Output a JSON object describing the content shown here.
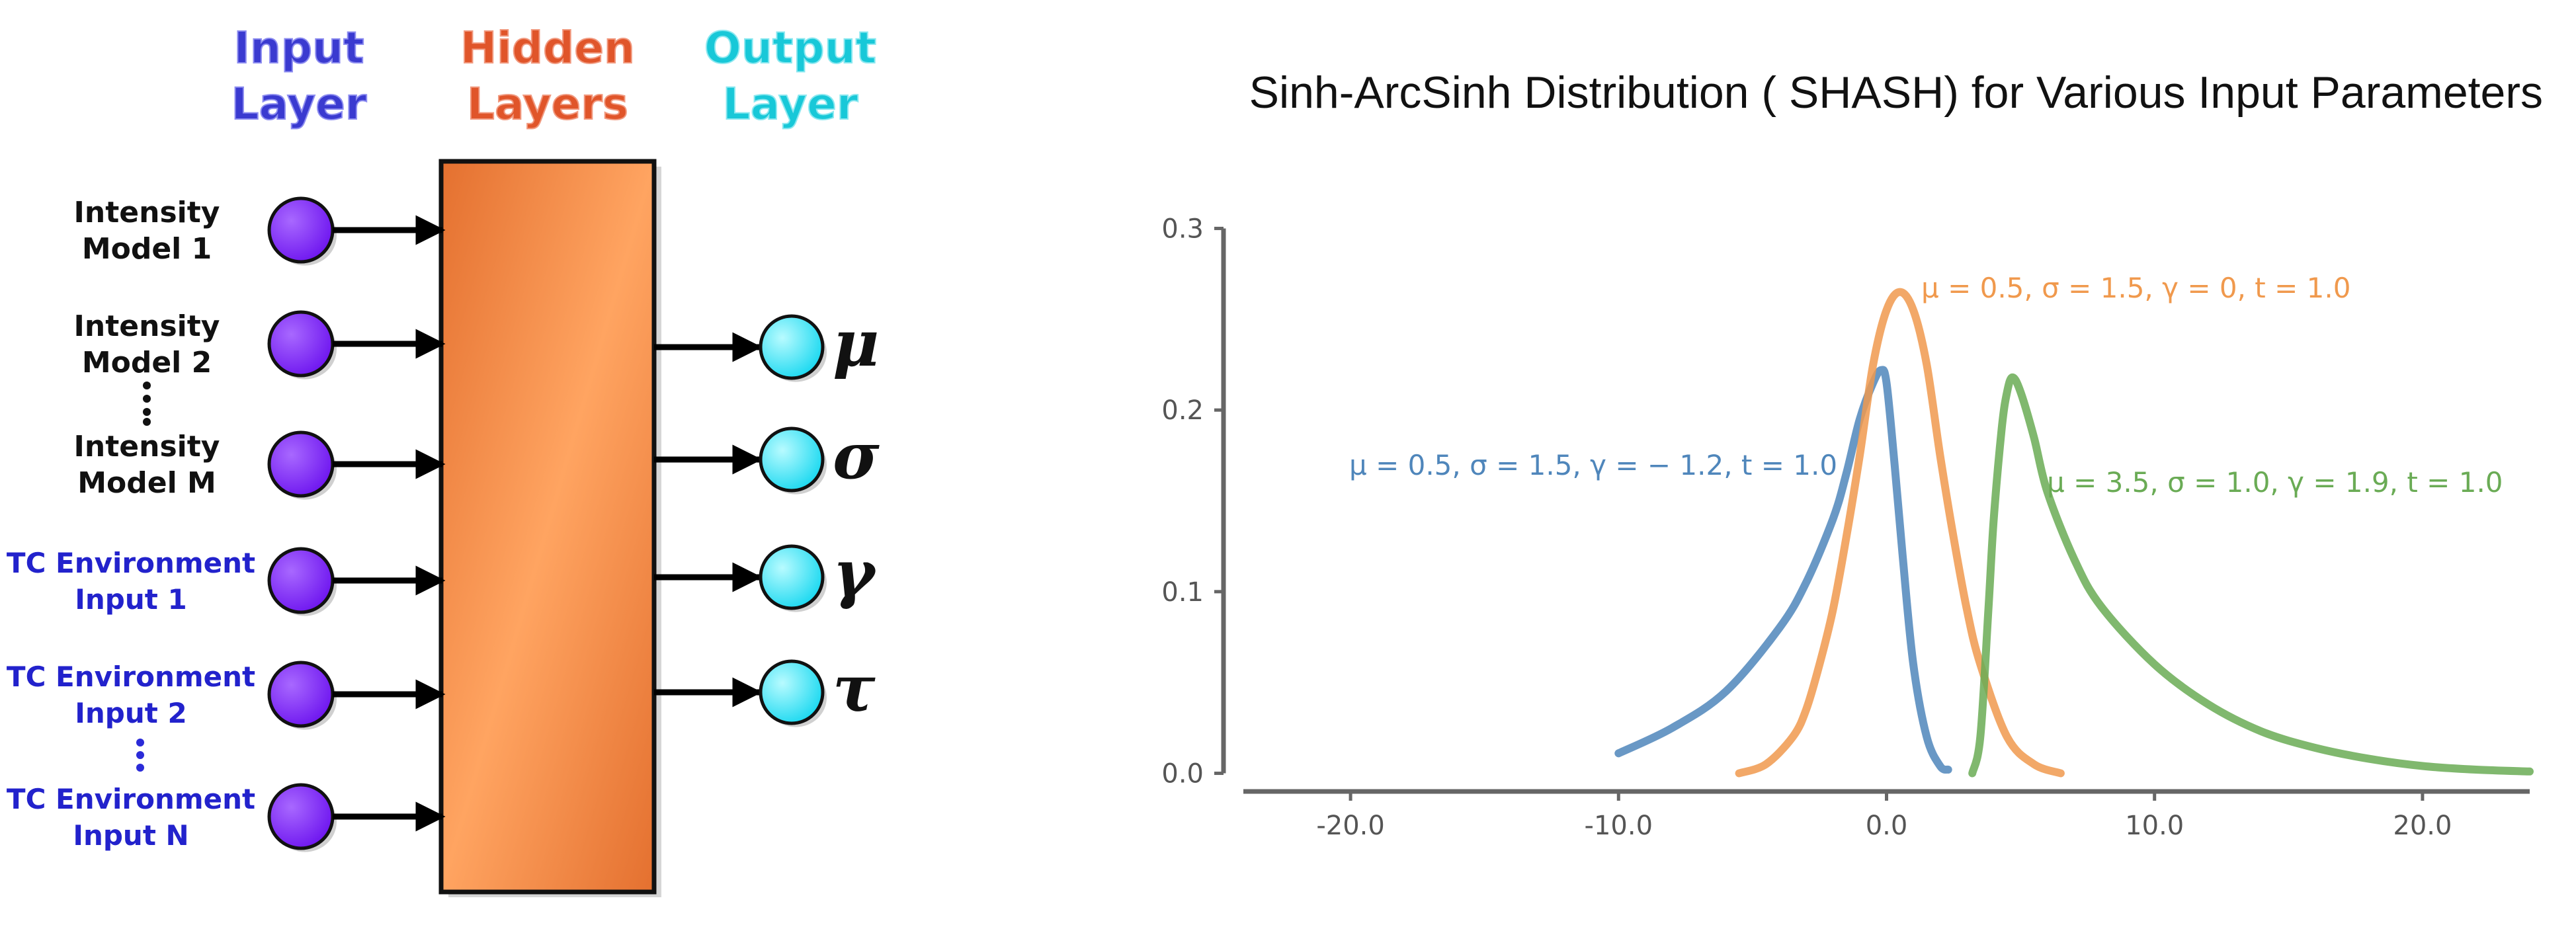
{
  "diagram": {
    "headers": {
      "input": [
        "Input",
        "Layer"
      ],
      "hidden": [
        "Hidden",
        "Layers"
      ],
      "output": [
        "Output",
        "Layer"
      ]
    },
    "inputs": [
      {
        "lines": [
          "Intensity",
          "Model 1"
        ],
        "kind": "model"
      },
      {
        "lines": [
          "Intensity",
          "Model 2"
        ],
        "kind": "model"
      },
      {
        "lines": [
          "Intensity",
          "Model M"
        ],
        "kind": "model"
      },
      {
        "lines": [
          "TC Environment",
          "Input 1"
        ],
        "kind": "env"
      },
      {
        "lines": [
          "TC Environment",
          "Input 2"
        ],
        "kind": "env"
      },
      {
        "lines": [
          "TC Environment",
          "Input N"
        ],
        "kind": "env"
      }
    ],
    "outputs": [
      "μ",
      "σ",
      "γ",
      "τ"
    ],
    "colors": {
      "input_header": "#3a3ad0",
      "hidden_header": "#e0552a",
      "output_header": "#18c8d8",
      "input_node": "#7a1fff",
      "output_node": "#33ecff",
      "hidden_box_light": "#ffa461",
      "hidden_box_dark": "#e4702f",
      "env_label": "#2222cc"
    }
  },
  "chart_data": {
    "type": "line",
    "title": "Sinh-ArcSinh Distribution ( SHASH) for Various Input Parameters",
    "xlabel": "",
    "ylabel": "",
    "xlim": [
      -24.0,
      24.0
    ],
    "ylim": [
      -0.01,
      0.31
    ],
    "xticks": [
      -20.0,
      -10.0,
      0.0,
      10.0,
      20.0
    ],
    "xtick_labels": [
      "-20.0",
      "-10.0",
      "0.0",
      "10.0",
      "20.0"
    ],
    "yticks": [
      0.0,
      0.1,
      0.2,
      0.3
    ],
    "ytick_labels": [
      "0.0",
      "0.1",
      "0.2",
      "0.3"
    ],
    "grid": false,
    "series": [
      {
        "annotation": "μ = 0.5, σ = 1.5, γ = − 1.2, t = 1.0",
        "color": "#4f86bb",
        "x": [
          -10.0,
          -8.0,
          -6.0,
          -4.0,
          -3.0,
          -2.0,
          -1.5,
          -1.0,
          -0.5,
          -0.2,
          0.0,
          0.3,
          0.6,
          1.0,
          1.5,
          2.0,
          2.3
        ],
        "y": [
          0.011,
          0.025,
          0.045,
          0.08,
          0.105,
          0.14,
          0.165,
          0.195,
          0.215,
          0.222,
          0.215,
          0.17,
          0.12,
          0.06,
          0.02,
          0.004,
          0.002
        ]
      },
      {
        "annotation": "μ = 0.5, σ = 1.5, γ = 0, t = 1.0",
        "color": "#f0994d",
        "x": [
          -5.5,
          -4.5,
          -3.5,
          -3.0,
          -2.5,
          -2.0,
          -1.5,
          -1.0,
          -0.5,
          0.0,
          0.5,
          1.0,
          1.5,
          2.0,
          2.5,
          3.0,
          3.5,
          4.5,
          5.5,
          6.5
        ],
        "y": [
          0.0,
          0.005,
          0.02,
          0.035,
          0.06,
          0.09,
          0.13,
          0.175,
          0.225,
          0.255,
          0.265,
          0.255,
          0.225,
          0.175,
          0.13,
          0.09,
          0.06,
          0.02,
          0.005,
          0.0
        ]
      },
      {
        "annotation": "μ = 3.5, σ = 1.0, γ = 1.9, t = 1.0",
        "color": "#6aab55",
        "x": [
          3.2,
          3.5,
          3.8,
          4.0,
          4.3,
          4.5,
          4.7,
          5.0,
          5.5,
          6.0,
          7.0,
          8.0,
          10.0,
          12.0,
          14.0,
          16.0,
          18.0,
          20.0,
          22.0,
          24.0
        ],
        "y": [
          0.0,
          0.02,
          0.09,
          0.14,
          0.19,
          0.21,
          0.218,
          0.21,
          0.185,
          0.155,
          0.118,
          0.092,
          0.06,
          0.038,
          0.023,
          0.014,
          0.008,
          0.004,
          0.002,
          0.001
        ]
      }
    ]
  }
}
